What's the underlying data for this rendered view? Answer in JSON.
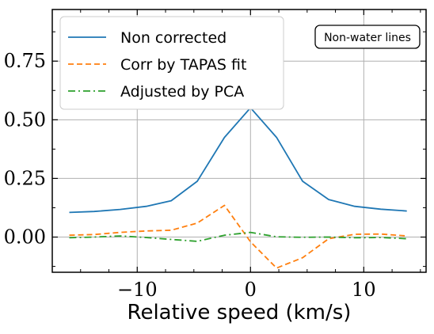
{
  "chart_data": {
    "type": "line",
    "title": "",
    "xlabel": "Relative speed (km/s)",
    "ylabel": "",
    "xlim": [
      -17.5,
      15.5
    ],
    "ylim": [
      -0.15,
      0.97
    ],
    "xticks": [
      -10,
      0,
      10
    ],
    "xtick_labels": [
      "−10",
      "0",
      "10"
    ],
    "yticks": [
      0.0,
      0.25,
      0.5,
      0.75
    ],
    "ytick_labels": [
      "0.00",
      "0.25",
      "0.50",
      "0.75"
    ],
    "grid": true,
    "legend_position": "top-left",
    "annotation": "Non-water lines",
    "series": [
      {
        "name": "Non corrected",
        "color": "#1f77b4",
        "style": "solid",
        "x": [
          -16.0,
          -13.8,
          -11.5,
          -9.2,
          -7.0,
          -4.7,
          -2.3,
          0.0,
          2.3,
          4.6,
          6.9,
          9.2,
          11.5,
          13.8
        ],
        "y": [
          0.105,
          0.109,
          0.118,
          0.131,
          0.155,
          0.238,
          0.425,
          0.551,
          0.425,
          0.238,
          0.16,
          0.131,
          0.119,
          0.111
        ]
      },
      {
        "name": "Corr by TAPAS fit",
        "color": "#ff7f0e",
        "style": "dashed",
        "x": [
          -16.0,
          -13.8,
          -11.5,
          -9.2,
          -7.0,
          -4.7,
          -2.3,
          0.0,
          2.3,
          4.6,
          6.9,
          9.2,
          11.5,
          13.8
        ],
        "y": [
          0.008,
          0.011,
          0.02,
          0.026,
          0.029,
          0.06,
          0.135,
          -0.02,
          -0.132,
          -0.088,
          -0.007,
          0.012,
          0.013,
          0.005
        ]
      },
      {
        "name": "Adjusted by PCA",
        "color": "#2ca02c",
        "style": "dashdot",
        "x": [
          -16.0,
          -13.8,
          -11.5,
          -9.2,
          -7.0,
          -4.7,
          -2.3,
          0.0,
          2.3,
          4.6,
          6.9,
          9.2,
          11.5,
          13.8
        ],
        "y": [
          -0.003,
          0.0,
          0.005,
          -0.002,
          -0.01,
          -0.018,
          0.008,
          0.02,
          0.001,
          -0.001,
          0.0,
          -0.003,
          -0.002,
          -0.007
        ]
      }
    ]
  }
}
